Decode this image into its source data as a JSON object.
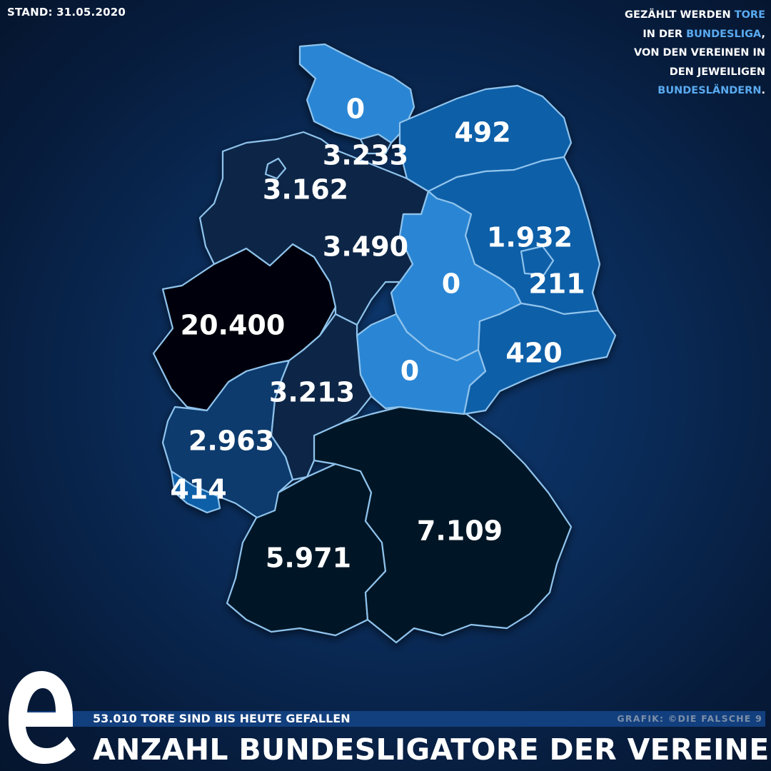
{
  "stand": "STAND: 31.05.2020",
  "note": {
    "line1_a": "GEZÄHLT WERDEN ",
    "line1_b": "TORE",
    "line2_a": "IN DER ",
    "line2_b": "BUNDESLIGA",
    "line2_c": ",",
    "line3": "VON DEN VEREINEN IN",
    "line4": "DEN JEWEILIGEN",
    "line5_b": "BUNDESLÄNDERN",
    "line5_c": "."
  },
  "colors": {
    "lightest": "#2a86d4",
    "light": "#0f5fa8",
    "mid": "#0c3a6e",
    "dark": "#0b2546",
    "darker": "#051426",
    "darkest": "#02060e",
    "accent": "#5aaaf0",
    "border": "#8fc3ec"
  },
  "regions": [
    {
      "name": "schleswig-holstein",
      "value": "0"
    },
    {
      "name": "mecklenburg-vorpommern",
      "value": "492"
    },
    {
      "name": "hamburg",
      "value": "3.233"
    },
    {
      "name": "niedersachsen",
      "value": "3.162"
    },
    {
      "name": "bremen",
      "value": "3.490"
    },
    {
      "name": "brandenburg",
      "value": "1.932"
    },
    {
      "name": "berlin",
      "value": "211"
    },
    {
      "name": "sachsen-anhalt",
      "value": "0"
    },
    {
      "name": "nordrhein-westfalen",
      "value": "20.400"
    },
    {
      "name": "sachsen",
      "value": "420"
    },
    {
      "name": "thueringen",
      "value": "0"
    },
    {
      "name": "hessen",
      "value": "3.213"
    },
    {
      "name": "rheinland-pfalz",
      "value": "2.963"
    },
    {
      "name": "saarland",
      "value": "414"
    },
    {
      "name": "bayern",
      "value": "7.109"
    },
    {
      "name": "baden-wuerttemberg",
      "value": "5.971"
    }
  ],
  "footer": {
    "subtitle": "53.010 TORE SIND BIS HEUTE GEFALLEN",
    "credit": "GRAFIK: ©DIE FALSCHE 9",
    "title": "ANZAHL BUNDESLIGATORE DER VEREINE"
  },
  "logo_icon": "die-falsche-9-e-logo-icon"
}
